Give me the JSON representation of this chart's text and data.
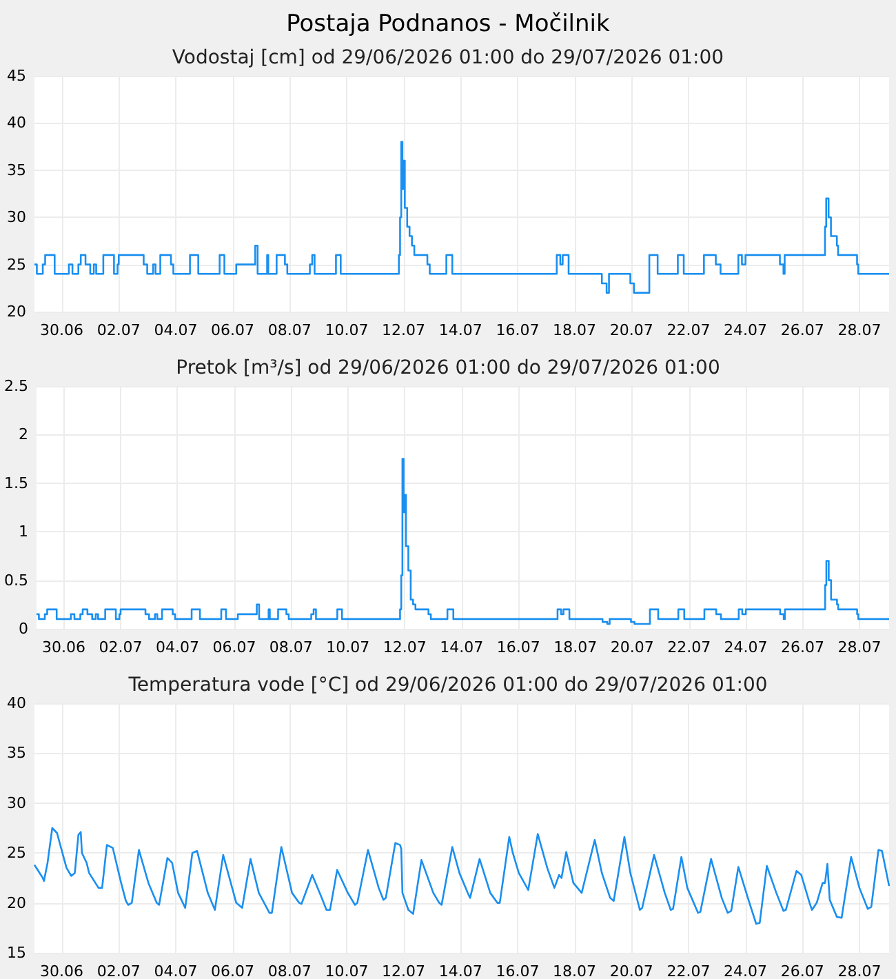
{
  "chart_data": [
    {
      "type": "step",
      "title": "Postaja Podnanos - Močilnik",
      "subtitle": "Vodostaj [cm] od 29/06/2026 01:00 do 29/07/2026 01:00",
      "color": "#1a8ff0",
      "grid": true,
      "xlim": [
        "2026-06-29T01:00",
        "2026-07-29T01:00"
      ],
      "xticks": [
        {
          "value": "2026-06-30",
          "label": "30.06"
        },
        {
          "value": "2026-07-02",
          "label": "02.07"
        },
        {
          "value": "2026-07-04",
          "label": "04.07"
        },
        {
          "value": "2026-07-06",
          "label": "06.07"
        },
        {
          "value": "2026-07-08",
          "label": "08.07"
        },
        {
          "value": "2026-07-10",
          "label": "10.07"
        },
        {
          "value": "2026-07-12",
          "label": "12.07"
        },
        {
          "value": "2026-07-14",
          "label": "14.07"
        },
        {
          "value": "2026-07-16",
          "label": "16.07"
        },
        {
          "value": "2026-07-18",
          "label": "18.07"
        },
        {
          "value": "2026-07-20",
          "label": "20.07"
        },
        {
          "value": "2026-07-22",
          "label": "22.07"
        },
        {
          "value": "2026-07-24",
          "label": "24.07"
        },
        {
          "value": "2026-07-26",
          "label": "26.07"
        },
        {
          "value": "2026-07-28",
          "label": "28.07"
        }
      ],
      "ylim": [
        20,
        45
      ],
      "yticks": [
        20,
        25,
        30,
        35,
        40,
        45
      ],
      "x": [
        "2026-06-29T01:00",
        "2026-06-29T03:00",
        "2026-06-29T08:00",
        "2026-06-29T10:00",
        "2026-06-29T18:00",
        "2026-06-30T06:00",
        "2026-06-30T09:00",
        "2026-06-30T14:00",
        "2026-06-30T16:00",
        "2026-06-30T20:00",
        "2026-07-01T00:00",
        "2026-07-01T03:00",
        "2026-07-01T05:00",
        "2026-07-01T11:00",
        "2026-07-01T20:00",
        "2026-07-01T23:00",
        "2026-07-02T00:00",
        "2026-07-02T21:00",
        "2026-07-03T00:00",
        "2026-07-03T05:00",
        "2026-07-03T07:00",
        "2026-07-03T11:00",
        "2026-07-03T20:00",
        "2026-07-03T22:00",
        "2026-07-04T12:00",
        "2026-07-04T19:00",
        "2026-07-05T13:00",
        "2026-07-05T17:00",
        "2026-07-06T03:00",
        "2026-07-06T19:00",
        "2026-07-06T21:00",
        "2026-07-07T05:00",
        "2026-07-07T06:00",
        "2026-07-07T13:00",
        "2026-07-07T20:00",
        "2026-07-07T22:00",
        "2026-07-08T17:00",
        "2026-07-08T19:00",
        "2026-07-08T21:00",
        "2026-07-09T15:00",
        "2026-07-09T19:00",
        "2026-07-11T20:00",
        "2026-07-11T21:00",
        "2026-07-11T22:00",
        "2026-07-11T23:00",
        "2026-07-12T00:00",
        "2026-07-12T01:00",
        "2026-07-12T03:00",
        "2026-07-12T05:00",
        "2026-07-12T07:00",
        "2026-07-12T09:00",
        "2026-07-12T20:00",
        "2026-07-12T22:00",
        "2026-07-13T12:00",
        "2026-07-13T17:00",
        "2026-07-17T09:00",
        "2026-07-17T12:00",
        "2026-07-17T14:00",
        "2026-07-17T19:00",
        "2026-07-18T23:00",
        "2026-07-19T03:00",
        "2026-07-19T05:00",
        "2026-07-19T23:00",
        "2026-07-20T02:00",
        "2026-07-20T15:00",
        "2026-07-20T22:00",
        "2026-07-21T15:00",
        "2026-07-21T20:00",
        "2026-07-22T13:00",
        "2026-07-22T23:00",
        "2026-07-23T03:00",
        "2026-07-23T18:00",
        "2026-07-23T21:00",
        "2026-07-24T00:00",
        "2026-07-25T05:00",
        "2026-07-25T08:00",
        "2026-07-25T09:00",
        "2026-07-26T19:00",
        "2026-07-26T20:00",
        "2026-07-26T22:00",
        "2026-07-27T00:00",
        "2026-07-27T05:00",
        "2026-07-27T06:00",
        "2026-07-27T22:00",
        "2026-07-27T23:00",
        "2026-07-29T01:00"
      ],
      "values": [
        25,
        24,
        25,
        26,
        24,
        25,
        24,
        25,
        26,
        25,
        24,
        25,
        24,
        26,
        24,
        25,
        26,
        25,
        24,
        25,
        24,
        26,
        25,
        24,
        26,
        24,
        26,
        24,
        25,
        27,
        24,
        26,
        24,
        26,
        25,
        24,
        25,
        26,
        24,
        26,
        24,
        26,
        30,
        38,
        33,
        36,
        31,
        29,
        28,
        27,
        26,
        25,
        24,
        26,
        24,
        26,
        25,
        26,
        24,
        23,
        22,
        24,
        23,
        22,
        26,
        24,
        26,
        24,
        26,
        25,
        24,
        26,
        25,
        26,
        25,
        24,
        26,
        29,
        32,
        30,
        28,
        27,
        26,
        25,
        24,
        24
      ]
    },
    {
      "type": "step",
      "title": "Pretok [m³/s] od 29/06/2026 01:00 do 29/07/2026 01:00",
      "color": "#1a8ff0",
      "grid": true,
      "xlim": [
        "2026-06-29T01:00",
        "2026-07-29T01:00"
      ],
      "xticks": [
        {
          "value": "2026-06-30",
          "label": "30.06"
        },
        {
          "value": "2026-07-02",
          "label": "02.07"
        },
        {
          "value": "2026-07-04",
          "label": "04.07"
        },
        {
          "value": "2026-07-06",
          "label": "06.07"
        },
        {
          "value": "2026-07-08",
          "label": "08.07"
        },
        {
          "value": "2026-07-10",
          "label": "10.07"
        },
        {
          "value": "2026-07-12",
          "label": "12.07"
        },
        {
          "value": "2026-07-14",
          "label": "14.07"
        },
        {
          "value": "2026-07-16",
          "label": "16.07"
        },
        {
          "value": "2026-07-18",
          "label": "18.07"
        },
        {
          "value": "2026-07-20",
          "label": "20.07"
        },
        {
          "value": "2026-07-22",
          "label": "22.07"
        },
        {
          "value": "2026-07-24",
          "label": "24.07"
        },
        {
          "value": "2026-07-26",
          "label": "26.07"
        },
        {
          "value": "2026-07-28",
          "label": "28.07"
        }
      ],
      "ylim": [
        0,
        2.5
      ],
      "yticks": [
        0,
        0.5,
        1,
        1.5,
        2,
        2.5
      ],
      "x": [
        "2026-06-29T01:00",
        "2026-06-29T03:00",
        "2026-06-29T08:00",
        "2026-06-29T10:00",
        "2026-06-29T18:00",
        "2026-06-30T06:00",
        "2026-06-30T09:00",
        "2026-06-30T14:00",
        "2026-06-30T16:00",
        "2026-06-30T20:00",
        "2026-07-01T00:00",
        "2026-07-01T03:00",
        "2026-07-01T05:00",
        "2026-07-01T11:00",
        "2026-07-01T20:00",
        "2026-07-01T23:00",
        "2026-07-02T00:00",
        "2026-07-02T21:00",
        "2026-07-03T00:00",
        "2026-07-03T05:00",
        "2026-07-03T07:00",
        "2026-07-03T11:00",
        "2026-07-03T20:00",
        "2026-07-03T22:00",
        "2026-07-04T12:00",
        "2026-07-04T19:00",
        "2026-07-05T13:00",
        "2026-07-05T17:00",
        "2026-07-06T03:00",
        "2026-07-06T19:00",
        "2026-07-06T21:00",
        "2026-07-07T05:00",
        "2026-07-07T06:00",
        "2026-07-07T13:00",
        "2026-07-07T20:00",
        "2026-07-07T22:00",
        "2026-07-08T17:00",
        "2026-07-08T19:00",
        "2026-07-08T21:00",
        "2026-07-09T15:00",
        "2026-07-09T19:00",
        "2026-07-11T20:00",
        "2026-07-11T21:00",
        "2026-07-11T22:00",
        "2026-07-11T23:00",
        "2026-07-12T00:00",
        "2026-07-12T01:00",
        "2026-07-12T03:00",
        "2026-07-12T05:00",
        "2026-07-12T07:00",
        "2026-07-12T09:00",
        "2026-07-12T20:00",
        "2026-07-12T22:00",
        "2026-07-13T12:00",
        "2026-07-13T17:00",
        "2026-07-17T09:00",
        "2026-07-17T12:00",
        "2026-07-17T14:00",
        "2026-07-17T19:00",
        "2026-07-18T23:00",
        "2026-07-19T03:00",
        "2026-07-19T05:00",
        "2026-07-19T23:00",
        "2026-07-20T02:00",
        "2026-07-20T15:00",
        "2026-07-20T22:00",
        "2026-07-21T15:00",
        "2026-07-21T20:00",
        "2026-07-22T13:00",
        "2026-07-22T23:00",
        "2026-07-23T03:00",
        "2026-07-23T18:00",
        "2026-07-23T21:00",
        "2026-07-24T00:00",
        "2026-07-25T05:00",
        "2026-07-25T08:00",
        "2026-07-25T09:00",
        "2026-07-26T19:00",
        "2026-07-26T20:00",
        "2026-07-26T22:00",
        "2026-07-27T00:00",
        "2026-07-27T05:00",
        "2026-07-27T06:00",
        "2026-07-27T22:00",
        "2026-07-27T23:00",
        "2026-07-29T01:00"
      ],
      "values": [
        0.15,
        0.1,
        0.15,
        0.2,
        0.1,
        0.15,
        0.1,
        0.15,
        0.2,
        0.15,
        0.1,
        0.15,
        0.1,
        0.2,
        0.1,
        0.15,
        0.2,
        0.15,
        0.1,
        0.15,
        0.1,
        0.2,
        0.15,
        0.1,
        0.2,
        0.1,
        0.2,
        0.1,
        0.15,
        0.25,
        0.1,
        0.2,
        0.1,
        0.2,
        0.15,
        0.1,
        0.15,
        0.2,
        0.1,
        0.2,
        0.1,
        0.2,
        0.55,
        1.75,
        1.2,
        1.38,
        0.85,
        0.6,
        0.3,
        0.25,
        0.2,
        0.15,
        0.1,
        0.2,
        0.1,
        0.2,
        0.15,
        0.2,
        0.1,
        0.07,
        0.05,
        0.1,
        0.07,
        0.05,
        0.2,
        0.1,
        0.2,
        0.1,
        0.2,
        0.15,
        0.1,
        0.2,
        0.15,
        0.2,
        0.15,
        0.1,
        0.2,
        0.45,
        0.7,
        0.5,
        0.3,
        0.25,
        0.2,
        0.15,
        0.1,
        0.1
      ]
    },
    {
      "type": "line",
      "title": "Temperatura vode [°C] od 29/06/2026 01:00 do 29/07/2026 01:00",
      "color": "#1a8ff0",
      "grid": true,
      "xlim": [
        "2026-06-29T01:00",
        "2026-07-29T01:00"
      ],
      "xticks": [
        {
          "value": "2026-06-30",
          "label": "30.06"
        },
        {
          "value": "2026-07-02",
          "label": "02.07"
        },
        {
          "value": "2026-07-04",
          "label": "04.07"
        },
        {
          "value": "2026-07-06",
          "label": "06.07"
        },
        {
          "value": "2026-07-08",
          "label": "08.07"
        },
        {
          "value": "2026-07-10",
          "label": "10.07"
        },
        {
          "value": "2026-07-12",
          "label": "12.07"
        },
        {
          "value": "2026-07-14",
          "label": "14.07"
        },
        {
          "value": "2026-07-16",
          "label": "16.07"
        },
        {
          "value": "2026-07-18",
          "label": "18.07"
        },
        {
          "value": "2026-07-20",
          "label": "20.07"
        },
        {
          "value": "2026-07-22",
          "label": "22.07"
        },
        {
          "value": "2026-07-24",
          "label": "24.07"
        },
        {
          "value": "2026-07-26",
          "label": "26.07"
        },
        {
          "value": "2026-07-28",
          "label": "28.07"
        }
      ],
      "ylim": [
        15,
        40
      ],
      "yticks": [
        15,
        20,
        25,
        30,
        35,
        40
      ],
      "x": [
        "2026-06-29T01:00",
        "2026-06-29T08:00",
        "2026-06-29T09:00",
        "2026-06-29T12:00",
        "2026-06-29T16:00",
        "2026-06-29T20:00",
        "2026-06-30T04:00",
        "2026-06-30T08:00",
        "2026-06-30T11:00",
        "2026-06-30T14:00",
        "2026-06-30T16:00",
        "2026-06-30T17:00",
        "2026-06-30T21:00",
        "2026-06-30T23:00",
        "2026-07-01T07:00",
        "2026-07-01T10:00",
        "2026-07-01T14:00",
        "2026-07-01T19:00",
        "2026-07-02T02:00",
        "2026-07-02T06:00",
        "2026-07-02T08:00",
        "2026-07-02T11:00",
        "2026-07-02T17:00",
        "2026-07-03T01:00",
        "2026-07-03T08:00",
        "2026-07-03T10:00",
        "2026-07-03T17:00",
        "2026-07-03T21:00",
        "2026-07-04T02:00",
        "2026-07-04T08:00",
        "2026-07-04T14:00",
        "2026-07-04T18:00",
        "2026-07-05T03:00",
        "2026-07-05T09:00",
        "2026-07-05T16:00",
        "2026-07-06T03:00",
        "2026-07-06T08:00",
        "2026-07-06T15:00",
        "2026-07-06T22:00",
        "2026-07-07T07:00",
        "2026-07-07T09:00",
        "2026-07-07T17:00",
        "2026-07-08T02:00",
        "2026-07-08T08:00",
        "2026-07-08T10:00",
        "2026-07-08T19:00",
        "2026-07-09T03:00",
        "2026-07-09T07:00",
        "2026-07-09T10:00",
        "2026-07-09T16:00",
        "2026-07-10T01:00",
        "2026-07-10T07:00",
        "2026-07-10T09:00",
        "2026-07-10T18:00",
        "2026-07-11T03:00",
        "2026-07-11T07:00",
        "2026-07-11T09:00",
        "2026-07-11T17:00",
        "2026-07-11T21:00",
        "2026-07-11T22:00",
        "2026-07-11T23:00",
        "2026-07-12T04:00",
        "2026-07-12T08:00",
        "2026-07-12T15:00",
        "2026-07-13T01:00",
        "2026-07-13T06:00",
        "2026-07-13T08:00",
        "2026-07-13T17:00",
        "2026-07-13T23:00",
        "2026-07-14T06:00",
        "2026-07-14T08:00",
        "2026-07-14T16:00",
        "2026-07-15T01:00",
        "2026-07-15T07:00",
        "2026-07-15T09:00",
        "2026-07-15T17:00",
        "2026-07-15T20:00",
        "2026-07-16T01:00",
        "2026-07-16T09:00",
        "2026-07-16T17:00",
        "2026-07-17T01:00",
        "2026-07-17T07:00",
        "2026-07-17T11:00",
        "2026-07-17T13:00",
        "2026-07-17T17:00",
        "2026-07-17T23:00",
        "2026-07-18T06:00",
        "2026-07-18T17:00",
        "2026-07-18T23:00",
        "2026-07-19T06:00",
        "2026-07-19T09:00",
        "2026-07-19T18:00",
        "2026-07-19T23:00",
        "2026-07-20T07:00",
        "2026-07-20T09:00",
        "2026-07-20T19:00",
        "2026-07-21T04:00",
        "2026-07-21T09:00",
        "2026-07-21T11:00",
        "2026-07-21T18:00",
        "2026-07-21T23:00",
        "2026-07-22T08:00",
        "2026-07-22T10:00",
        "2026-07-22T19:00",
        "2026-07-23T04:00",
        "2026-07-23T09:00",
        "2026-07-23T12:00",
        "2026-07-23T18:00",
        "2026-07-24T02:00",
        "2026-07-24T09:00",
        "2026-07-24T12:00",
        "2026-07-24T18:00",
        "2026-07-25T02:00",
        "2026-07-25T08:00",
        "2026-07-25T10:00",
        "2026-07-25T19:00",
        "2026-07-25T23:00",
        "2026-07-26T06:00",
        "2026-07-26T08:00",
        "2026-07-26T12:00",
        "2026-07-26T17:00",
        "2026-07-26T19:00",
        "2026-07-26T21:00",
        "2026-07-26T23:00",
        "2026-07-27T05:00",
        "2026-07-27T09:00",
        "2026-07-27T17:00",
        "2026-07-28T00:00",
        "2026-07-28T07:00",
        "2026-07-28T10:00",
        "2026-07-28T16:00",
        "2026-07-28T19:00",
        "2026-07-29T01:00"
      ],
      "values": [
        23.8,
        22.5,
        22.2,
        24,
        27.5,
        27,
        23.5,
        22.7,
        23,
        26.8,
        27.1,
        25,
        24,
        23,
        21.5,
        21.5,
        25.8,
        25.5,
        22,
        20.2,
        19.8,
        20,
        25.3,
        22,
        20,
        19.8,
        24.5,
        24,
        21,
        19.5,
        25,
        25.2,
        21,
        19.3,
        24.8,
        20,
        19.5,
        24.4,
        21,
        19,
        19,
        25.6,
        21,
        20,
        19.9,
        22.8,
        20.5,
        19.3,
        19.3,
        23.3,
        21,
        19.8,
        20,
        25.3,
        21.5,
        20.3,
        20.5,
        26,
        25.8,
        25.4,
        21,
        19.3,
        18.9,
        24.3,
        21,
        20,
        19.8,
        25.6,
        23,
        21,
        20.5,
        24.4,
        21,
        20,
        20,
        26.6,
        25,
        23,
        21.3,
        26.9,
        23.5,
        21.5,
        22.8,
        22.5,
        25.1,
        22,
        21,
        26.3,
        23,
        20.5,
        20.2,
        26.6,
        23,
        19.3,
        19.5,
        24.8,
        21,
        19.3,
        19.4,
        24.6,
        21.5,
        19,
        19.1,
        24.4,
        20.5,
        19,
        19.2,
        23.6,
        20.5,
        17.9,
        18,
        23.7,
        21,
        19.2,
        19.3,
        23.2,
        22.8,
        20,
        19.3,
        20,
        22,
        22,
        23.9,
        20.3,
        18.6,
        18.5,
        24.6,
        21.5,
        19.4,
        19.6,
        25.3,
        25.2,
        21.7
      ]
    }
  ]
}
